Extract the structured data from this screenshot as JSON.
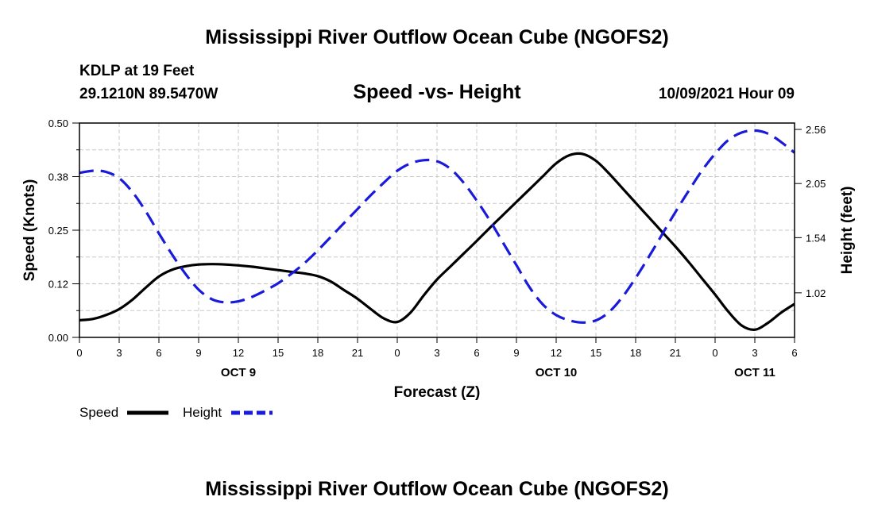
{
  "chart_data": {
    "type": "line",
    "title": "Mississippi River Outflow Ocean Cube (NGOFS2)",
    "footer_title": "Mississippi River Outflow Ocean Cube (NGOFS2)",
    "station": "KDLP at 19 Feet",
    "location": "29.1210N  89.5470W",
    "subtitle": "Speed -vs- Height",
    "datetime": "10/09/2021 Hour 09",
    "xlabel": "Forecast (Z)",
    "ylabel_left": "Speed (Knots)",
    "ylabel_right": "Height (feet)",
    "xlim": [
      0,
      54
    ],
    "ylim_left": [
      0,
      0.5
    ],
    "ylim_right": [
      0.6,
      2.62
    ],
    "x_ticks": [
      0,
      3,
      6,
      9,
      12,
      15,
      18,
      21,
      24,
      27,
      30,
      33,
      36,
      39,
      42,
      45,
      48,
      51,
      54
    ],
    "x_tick_labels": [
      "0",
      "3",
      "6",
      "9",
      "12",
      "15",
      "18",
      "21",
      "0",
      "3",
      "6",
      "9",
      "12",
      "15",
      "18",
      "21",
      "0",
      "3",
      "6"
    ],
    "y_left_ticks": [
      0.0,
      0.125,
      0.25,
      0.375,
      0.5
    ],
    "y_left_tick_labels": [
      "0.00",
      "0.12",
      "0.25",
      "0.38",
      "0.50"
    ],
    "y_right_ticks": [
      1.02,
      1.54,
      2.05,
      2.56
    ],
    "y_right_tick_labels": [
      "1.02",
      "1.54",
      "2.05",
      "2.56"
    ],
    "date_labels": [
      {
        "x": 12,
        "label": "OCT 9"
      },
      {
        "x": 36,
        "label": "OCT 10"
      },
      {
        "x": 51,
        "label": "OCT 11"
      }
    ],
    "grid": true,
    "series": [
      {
        "name": "Speed",
        "axis": "left",
        "color": "#000000",
        "style": "solid",
        "x": [
          0,
          1,
          2,
          3,
          4,
          5,
          6,
          7,
          8,
          9,
          10,
          11,
          12,
          13,
          14,
          15,
          16,
          17,
          18,
          19,
          20,
          21,
          22,
          23,
          24,
          25,
          26,
          27,
          28,
          29,
          30,
          31,
          32,
          33,
          34,
          35,
          36,
          37,
          38,
          39,
          40,
          41,
          42,
          43,
          44,
          45,
          46,
          47,
          48,
          49,
          50,
          51,
          52,
          53,
          54
        ],
        "values": [
          0.04,
          0.043,
          0.052,
          0.066,
          0.088,
          0.116,
          0.142,
          0.158,
          0.166,
          0.17,
          0.171,
          0.17,
          0.168,
          0.165,
          0.161,
          0.157,
          0.153,
          0.149,
          0.143,
          0.13,
          0.11,
          0.09,
          0.066,
          0.044,
          0.036,
          0.058,
          0.098,
          0.135,
          0.165,
          0.195,
          0.225,
          0.256,
          0.286,
          0.316,
          0.346,
          0.376,
          0.406,
          0.425,
          0.428,
          0.412,
          0.382,
          0.348,
          0.314,
          0.28,
          0.246,
          0.212,
          0.176,
          0.138,
          0.1,
          0.06,
          0.028,
          0.018,
          0.034,
          0.058,
          0.078
        ]
      },
      {
        "name": "Height",
        "axis": "right",
        "color": "#1a1adb",
        "style": "dashed",
        "x": [
          0,
          1,
          2,
          3,
          4,
          5,
          6,
          7,
          8,
          9,
          10,
          11,
          12,
          13,
          14,
          15,
          16,
          17,
          18,
          19,
          20,
          21,
          22,
          23,
          24,
          25,
          26,
          27,
          28,
          29,
          30,
          31,
          32,
          33,
          34,
          35,
          36,
          37,
          38,
          39,
          40,
          41,
          42,
          43,
          44,
          45,
          46,
          47,
          48,
          49,
          50,
          51,
          52,
          53,
          54
        ],
        "values": [
          2.15,
          2.17,
          2.16,
          2.1,
          1.97,
          1.79,
          1.58,
          1.38,
          1.2,
          1.05,
          0.96,
          0.93,
          0.94,
          0.98,
          1.04,
          1.11,
          1.2,
          1.3,
          1.42,
          1.55,
          1.68,
          1.81,
          1.94,
          2.06,
          2.17,
          2.24,
          2.27,
          2.26,
          2.19,
          2.06,
          1.89,
          1.7,
          1.49,
          1.28,
          1.07,
          0.91,
          0.81,
          0.76,
          0.74,
          0.76,
          0.84,
          0.98,
          1.16,
          1.36,
          1.57,
          1.78,
          1.98,
          2.17,
          2.33,
          2.46,
          2.53,
          2.55,
          2.52,
          2.44,
          2.34
        ]
      }
    ],
    "legend": {
      "placement": "bottom-left",
      "entries": [
        "Speed",
        "Height"
      ]
    }
  }
}
